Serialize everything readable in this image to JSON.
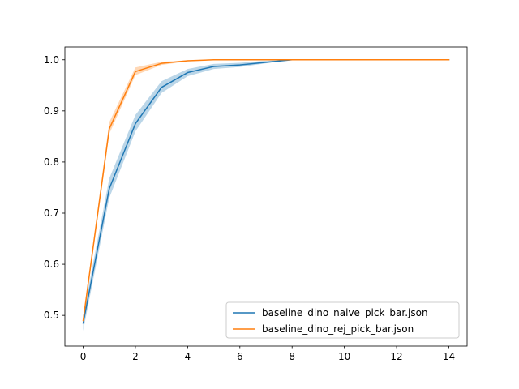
{
  "chart_data": {
    "type": "line",
    "title": "",
    "xlabel": "",
    "ylabel": "",
    "xlim": [
      -0.7,
      14.7
    ],
    "ylim": [
      0.44,
      1.025
    ],
    "xticks": [
      0,
      2,
      4,
      6,
      8,
      10,
      12,
      14
    ],
    "yticks": [
      0.5,
      0.6,
      0.7,
      0.8,
      0.9,
      1.0
    ],
    "xtick_labels": [
      "0",
      "2",
      "4",
      "6",
      "8",
      "10",
      "12",
      "14"
    ],
    "ytick_labels": [
      "0.5",
      "0.6",
      "0.7",
      "0.8",
      "0.9",
      "1.0"
    ],
    "grid": false,
    "legend_position": "lower-right",
    "x": [
      0,
      1,
      2,
      3,
      4,
      5,
      6,
      7,
      8,
      9,
      10,
      11,
      12,
      13,
      14
    ],
    "series": [
      {
        "name": "baseline_dino_naive_pick_bar.json",
        "color": "#1f77b4",
        "values": [
          0.485,
          0.748,
          0.875,
          0.946,
          0.975,
          0.987,
          0.99,
          0.995,
          1.0,
          1.0,
          1.0,
          1.0,
          1.0,
          1.0,
          1.0
        ],
        "lower": [
          0.47,
          0.73,
          0.86,
          0.935,
          0.968,
          0.982,
          0.986,
          0.993,
          1.0,
          1.0,
          1.0,
          1.0,
          1.0,
          1.0,
          1.0
        ],
        "upper": [
          0.5,
          0.768,
          0.892,
          0.958,
          0.982,
          0.992,
          0.994,
          0.998,
          1.0,
          1.0,
          1.0,
          1.0,
          1.0,
          1.0,
          1.0
        ]
      },
      {
        "name": "baseline_dino_rej_pick_bar.json",
        "color": "#ff7f0e",
        "values": [
          0.49,
          0.865,
          0.977,
          0.993,
          0.998,
          1.0,
          1.0,
          1.0,
          1.0,
          1.0,
          1.0,
          1.0,
          1.0,
          1.0,
          1.0
        ],
        "lower": [
          0.483,
          0.855,
          0.97,
          0.99,
          0.997,
          1.0,
          1.0,
          1.0,
          1.0,
          1.0,
          1.0,
          1.0,
          1.0,
          1.0,
          1.0
        ],
        "upper": [
          0.497,
          0.878,
          0.985,
          0.996,
          0.999,
          1.0,
          1.0,
          1.0,
          1.0,
          1.0,
          1.0,
          1.0,
          1.0,
          1.0,
          1.0
        ]
      }
    ]
  }
}
